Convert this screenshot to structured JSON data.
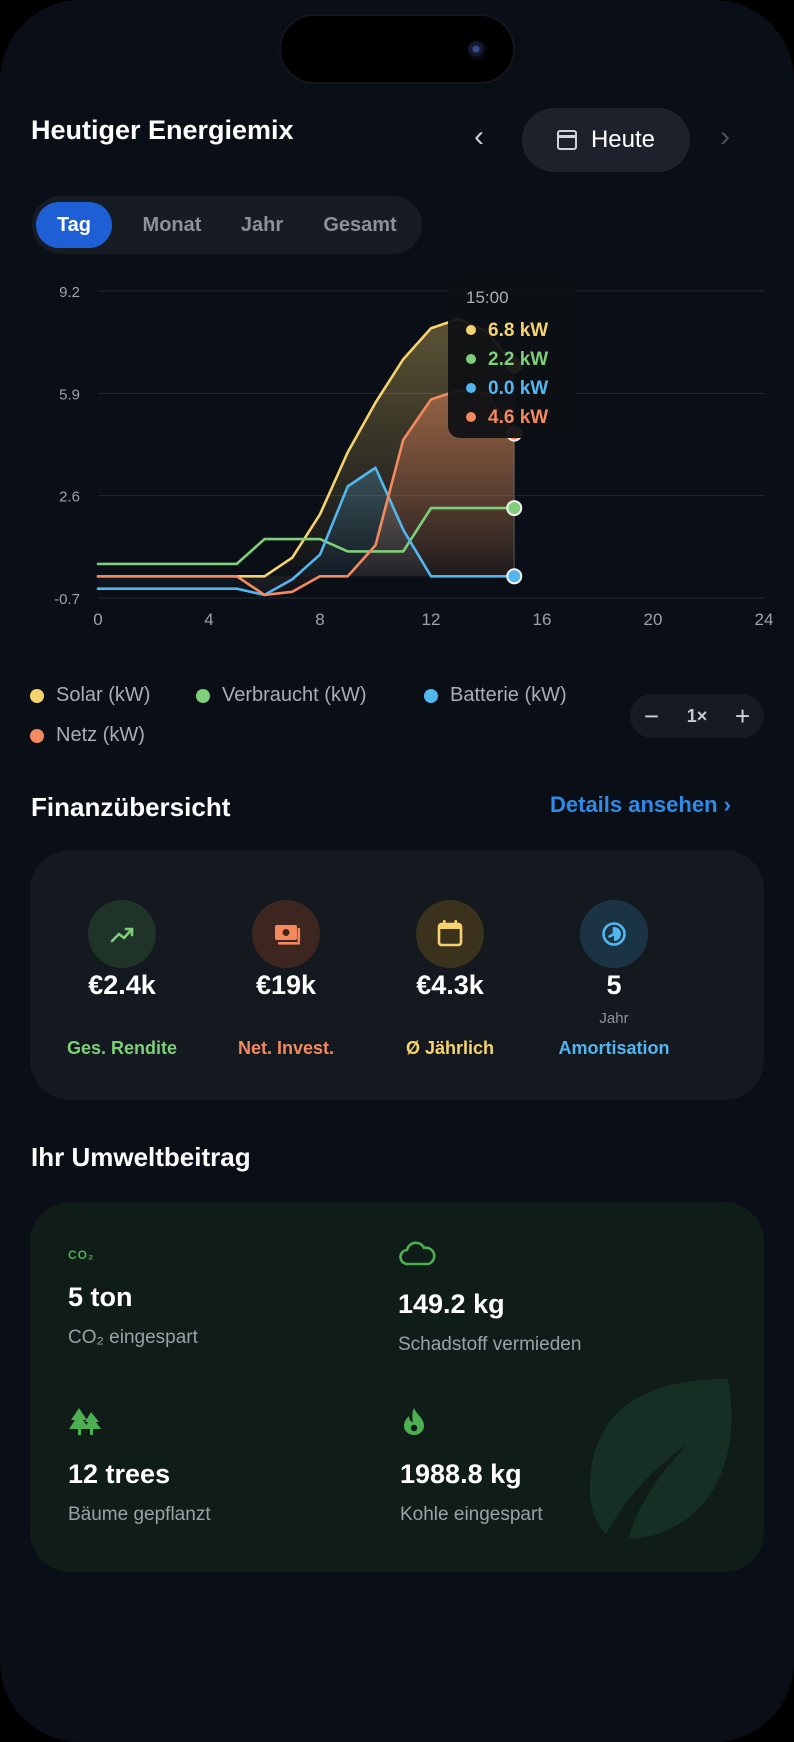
{
  "header": {
    "title": "Heutiger Energiemix",
    "date_label": "Heute",
    "prev_icon": "chevron-left-icon",
    "next_icon": "chevron-right-icon"
  },
  "tabs": [
    {
      "label": "Tag",
      "active": true
    },
    {
      "label": "Monat",
      "active": false
    },
    {
      "label": "Jahr",
      "active": false
    },
    {
      "label": "Gesamt",
      "active": false
    }
  ],
  "chart_data": {
    "type": "line",
    "x": [
      0,
      1,
      2,
      3,
      4,
      5,
      6,
      7,
      8,
      9,
      10,
      11,
      12,
      13,
      14,
      15
    ],
    "x_ticks": [
      "0",
      "4",
      "8",
      "12",
      "16",
      "20",
      "24"
    ],
    "y_ticks": [
      "9.2",
      "5.9",
      "2.6",
      "-0.7"
    ],
    "xlim": [
      0,
      24
    ],
    "ylim": [
      -0.7,
      9.2
    ],
    "grid": true,
    "legend_position": "bottom",
    "series": [
      {
        "name": "Solar (kW)",
        "color": "#f6d36e",
        "values": [
          0,
          0,
          0,
          0,
          0,
          0,
          0,
          0.6,
          2.0,
          4.0,
          5.6,
          7.0,
          8.0,
          8.3,
          7.9,
          6.8
        ]
      },
      {
        "name": "Verbraucht (kW)",
        "color": "#7fcf7a",
        "values": [
          0.4,
          0.4,
          0.4,
          0.4,
          0.4,
          0.4,
          1.2,
          1.2,
          1.2,
          0.8,
          0.8,
          0.8,
          2.2,
          2.2,
          2.2,
          2.2
        ]
      },
      {
        "name": "Batterie (kW)",
        "color": "#52b6ef",
        "values": [
          -0.4,
          -0.4,
          -0.4,
          -0.4,
          -0.4,
          -0.4,
          -0.6,
          -0.1,
          0.7,
          2.9,
          3.5,
          1.5,
          0,
          0,
          0,
          0
        ]
      },
      {
        "name": "Netz (kW)",
        "color": "#f4895f",
        "values": [
          0,
          0,
          0,
          0,
          0,
          0,
          -0.6,
          -0.5,
          0,
          0,
          1.0,
          4.4,
          5.7,
          6.0,
          5.9,
          4.6
        ]
      }
    ],
    "tooltip": {
      "time": "15:00",
      "entries": [
        {
          "text": "6.8 kW",
          "color": "#f6d36e"
        },
        {
          "text": "2.2 kW",
          "color": "#7fcf7a"
        },
        {
          "text": "0.0 kW",
          "color": "#52b6ef"
        },
        {
          "text": "4.6 kW",
          "color": "#f4895f"
        }
      ]
    }
  },
  "zoom": {
    "minus": "−",
    "label": "1×",
    "plus": "+"
  },
  "finance": {
    "title": "Finanzübersicht",
    "details_link": "Details ansehen",
    "items": [
      {
        "value": "€2.4k",
        "sublabel": "",
        "label": "Ges. Rendite",
        "color": "#7fcf7a",
        "bg": "#1f3328",
        "icon": "trending-up-icon"
      },
      {
        "value": "€19k",
        "sublabel": "",
        "label": "Net. Invest.",
        "color": "#f4895f",
        "bg": "#3d2520",
        "icon": "money-icon"
      },
      {
        "value": "€4.3k",
        "sublabel": "",
        "label": "Ø Jährlich",
        "color": "#f6d36e",
        "bg": "#3a321d",
        "icon": "calendar-icon"
      },
      {
        "value": "5",
        "sublabel": "Jahr",
        "label": "Amortisation",
        "color": "#52b6ef",
        "bg": "#1a3444",
        "icon": "clock-icon"
      }
    ]
  },
  "environment": {
    "title": "Ihr Umweltbeitrag",
    "items": [
      {
        "icon": "co2-icon",
        "icon_text": "CO₂",
        "value": "5 ton",
        "label": "CO₂ eingespart"
      },
      {
        "icon": "cloud-icon",
        "value": "149.2 kg",
        "label": "Schadstoff vermieden"
      },
      {
        "icon": "trees-icon",
        "value": "12 trees",
        "label": "Bäume gepflanzt"
      },
      {
        "icon": "fire-icon",
        "value": "1988.8 kg",
        "label": "Kohle eingespart"
      }
    ],
    "accent": "#4caf50"
  }
}
